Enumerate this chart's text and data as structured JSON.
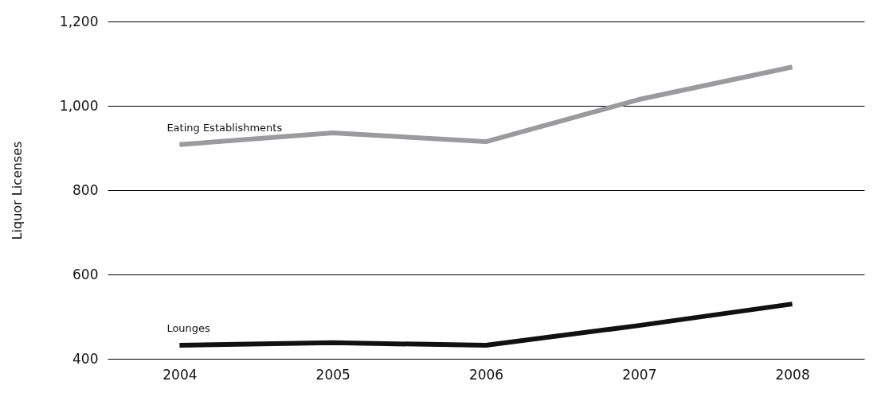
{
  "chart_data": {
    "type": "line",
    "ylabel": "Liquor Licenses",
    "categories": [
      "2004",
      "2005",
      "2006",
      "2007",
      "2008"
    ],
    "series": [
      {
        "name": "Eating Establishments",
        "color": "#9b9b9d",
        "values": [
          908,
          936,
          915,
          1015,
          1092
        ]
      },
      {
        "name": "Lounges",
        "color": "#111111",
        "values": [
          432,
          438,
          432,
          479,
          530
        ]
      }
    ],
    "ylim": [
      400,
      1200
    ],
    "yticks": [
      400,
      600,
      800,
      {
        "value": 1000,
        "label": "1,000"
      },
      {
        "value": 1200,
        "label": "1,200"
      }
    ],
    "grid": "y",
    "legend": false
  }
}
